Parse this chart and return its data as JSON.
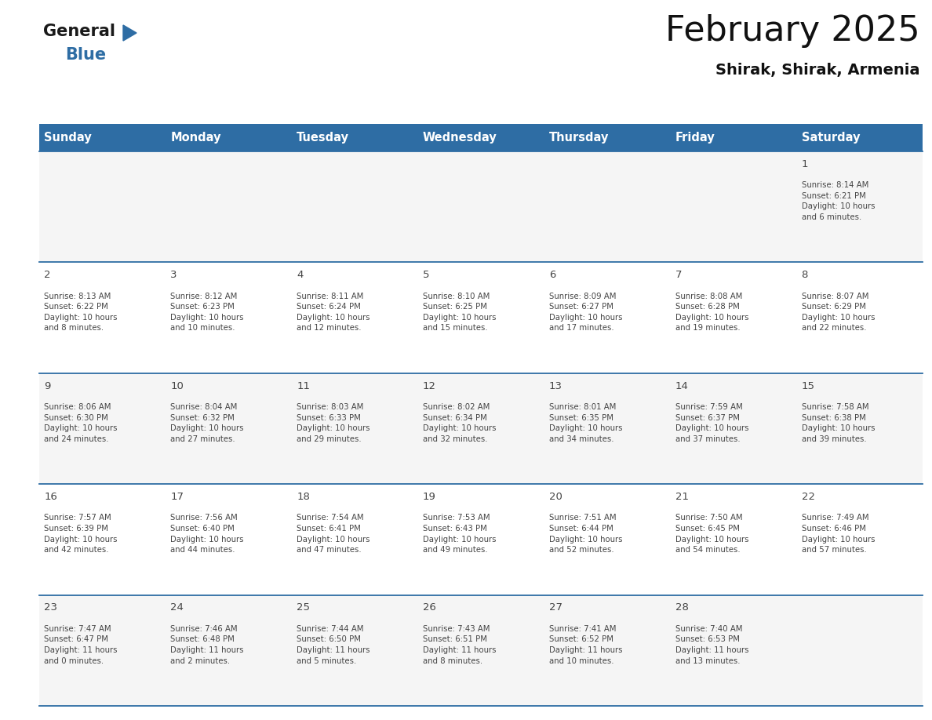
{
  "title": "February 2025",
  "subtitle": "Shirak, Shirak, Armenia",
  "header_bg_color": "#2E6DA4",
  "header_text_color": "#FFFFFF",
  "border_color": "#2E6DA4",
  "text_color": "#444444",
  "days_of_week": [
    "Sunday",
    "Monday",
    "Tuesday",
    "Wednesday",
    "Thursday",
    "Friday",
    "Saturday"
  ],
  "calendar_data": [
    [
      {
        "day": null,
        "info": null
      },
      {
        "day": null,
        "info": null
      },
      {
        "day": null,
        "info": null
      },
      {
        "day": null,
        "info": null
      },
      {
        "day": null,
        "info": null
      },
      {
        "day": null,
        "info": null
      },
      {
        "day": "1",
        "info": "Sunrise: 8:14 AM\nSunset: 6:21 PM\nDaylight: 10 hours\nand 6 minutes."
      }
    ],
    [
      {
        "day": "2",
        "info": "Sunrise: 8:13 AM\nSunset: 6:22 PM\nDaylight: 10 hours\nand 8 minutes."
      },
      {
        "day": "3",
        "info": "Sunrise: 8:12 AM\nSunset: 6:23 PM\nDaylight: 10 hours\nand 10 minutes."
      },
      {
        "day": "4",
        "info": "Sunrise: 8:11 AM\nSunset: 6:24 PM\nDaylight: 10 hours\nand 12 minutes."
      },
      {
        "day": "5",
        "info": "Sunrise: 8:10 AM\nSunset: 6:25 PM\nDaylight: 10 hours\nand 15 minutes."
      },
      {
        "day": "6",
        "info": "Sunrise: 8:09 AM\nSunset: 6:27 PM\nDaylight: 10 hours\nand 17 minutes."
      },
      {
        "day": "7",
        "info": "Sunrise: 8:08 AM\nSunset: 6:28 PM\nDaylight: 10 hours\nand 19 minutes."
      },
      {
        "day": "8",
        "info": "Sunrise: 8:07 AM\nSunset: 6:29 PM\nDaylight: 10 hours\nand 22 minutes."
      }
    ],
    [
      {
        "day": "9",
        "info": "Sunrise: 8:06 AM\nSunset: 6:30 PM\nDaylight: 10 hours\nand 24 minutes."
      },
      {
        "day": "10",
        "info": "Sunrise: 8:04 AM\nSunset: 6:32 PM\nDaylight: 10 hours\nand 27 minutes."
      },
      {
        "day": "11",
        "info": "Sunrise: 8:03 AM\nSunset: 6:33 PM\nDaylight: 10 hours\nand 29 minutes."
      },
      {
        "day": "12",
        "info": "Sunrise: 8:02 AM\nSunset: 6:34 PM\nDaylight: 10 hours\nand 32 minutes."
      },
      {
        "day": "13",
        "info": "Sunrise: 8:01 AM\nSunset: 6:35 PM\nDaylight: 10 hours\nand 34 minutes."
      },
      {
        "day": "14",
        "info": "Sunrise: 7:59 AM\nSunset: 6:37 PM\nDaylight: 10 hours\nand 37 minutes."
      },
      {
        "day": "15",
        "info": "Sunrise: 7:58 AM\nSunset: 6:38 PM\nDaylight: 10 hours\nand 39 minutes."
      }
    ],
    [
      {
        "day": "16",
        "info": "Sunrise: 7:57 AM\nSunset: 6:39 PM\nDaylight: 10 hours\nand 42 minutes."
      },
      {
        "day": "17",
        "info": "Sunrise: 7:56 AM\nSunset: 6:40 PM\nDaylight: 10 hours\nand 44 minutes."
      },
      {
        "day": "18",
        "info": "Sunrise: 7:54 AM\nSunset: 6:41 PM\nDaylight: 10 hours\nand 47 minutes."
      },
      {
        "day": "19",
        "info": "Sunrise: 7:53 AM\nSunset: 6:43 PM\nDaylight: 10 hours\nand 49 minutes."
      },
      {
        "day": "20",
        "info": "Sunrise: 7:51 AM\nSunset: 6:44 PM\nDaylight: 10 hours\nand 52 minutes."
      },
      {
        "day": "21",
        "info": "Sunrise: 7:50 AM\nSunset: 6:45 PM\nDaylight: 10 hours\nand 54 minutes."
      },
      {
        "day": "22",
        "info": "Sunrise: 7:49 AM\nSunset: 6:46 PM\nDaylight: 10 hours\nand 57 minutes."
      }
    ],
    [
      {
        "day": "23",
        "info": "Sunrise: 7:47 AM\nSunset: 6:47 PM\nDaylight: 11 hours\nand 0 minutes."
      },
      {
        "day": "24",
        "info": "Sunrise: 7:46 AM\nSunset: 6:48 PM\nDaylight: 11 hours\nand 2 minutes."
      },
      {
        "day": "25",
        "info": "Sunrise: 7:44 AM\nSunset: 6:50 PM\nDaylight: 11 hours\nand 5 minutes."
      },
      {
        "day": "26",
        "info": "Sunrise: 7:43 AM\nSunset: 6:51 PM\nDaylight: 11 hours\nand 8 minutes."
      },
      {
        "day": "27",
        "info": "Sunrise: 7:41 AM\nSunset: 6:52 PM\nDaylight: 11 hours\nand 10 minutes."
      },
      {
        "day": "28",
        "info": "Sunrise: 7:40 AM\nSunset: 6:53 PM\nDaylight: 11 hours\nand 13 minutes."
      },
      {
        "day": null,
        "info": null
      }
    ]
  ],
  "logo_general_color": "#1a1a1a",
  "logo_blue_color": "#2E6DA4",
  "logo_triangle_color": "#2E6DA4",
  "fig_width": 11.88,
  "fig_height": 9.18,
  "dpi": 100
}
